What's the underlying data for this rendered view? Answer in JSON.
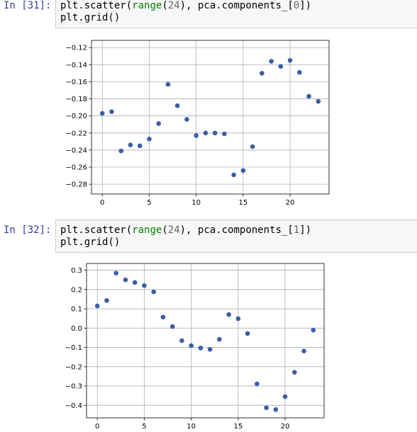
{
  "cells": [
    {
      "prompt": "In [31]:",
      "code": {
        "line1_pre": "plt.scatter(",
        "line1_fn": "range",
        "line1_open": "(",
        "line1_num": "24",
        "line1_mid": "), pca.components_[",
        "line1_idx": "0",
        "line1_end": "])",
        "line2": "plt.grid()"
      }
    },
    {
      "prompt": "In [32]:",
      "code": {
        "line1_pre": "plt.scatter(",
        "line1_fn": "range",
        "line1_open": "(",
        "line1_num": "24",
        "line1_mid": "), pca.components_[",
        "line1_idx": "1",
        "line1_end": "])",
        "line2": "plt.grid()"
      }
    }
  ],
  "colors": {
    "marker": "#3a5ea8",
    "grid": "#b0b0b0",
    "prompt": "#303F9F",
    "keyword": "#008000"
  },
  "chart_data": [
    {
      "type": "scatter",
      "title": "",
      "xlabel": "",
      "ylabel": "",
      "grid": true,
      "xlim": [
        -1.15,
        24.15
      ],
      "ylim": [
        -0.2915,
        -0.1115
      ],
      "xticks": [
        0,
        5,
        10,
        15,
        20
      ],
      "xtick_labels": [
        "0",
        "5",
        "10",
        "15",
        "20"
      ],
      "yticks": [
        -0.28,
        -0.26,
        -0.24,
        -0.22,
        -0.2,
        -0.18,
        -0.16,
        -0.14,
        -0.12
      ],
      "ytick_labels": [
        "−0.28",
        "−0.26",
        "−0.24",
        "−0.22",
        "−0.20",
        "−0.18",
        "−0.16",
        "−0.14",
        "−0.12"
      ],
      "x": [
        0,
        1,
        2,
        3,
        4,
        5,
        6,
        7,
        8,
        9,
        10,
        11,
        12,
        13,
        14,
        15,
        16,
        17,
        18,
        19,
        20,
        21,
        22,
        23
      ],
      "y": [
        -0.197,
        -0.195,
        -0.241,
        -0.234,
        -0.235,
        -0.227,
        -0.209,
        -0.163,
        -0.188,
        -0.204,
        -0.223,
        -0.22,
        -0.22,
        -0.221,
        -0.269,
        -0.264,
        -0.236,
        -0.15,
        -0.136,
        -0.142,
        -0.135,
        -0.149,
        -0.177,
        -0.183
      ]
    },
    {
      "type": "scatter",
      "title": "",
      "xlabel": "",
      "ylabel": "",
      "grid": true,
      "xlim": [
        -1.15,
        24.15
      ],
      "ylim": [
        -0.465,
        0.335
      ],
      "xticks": [
        0,
        5,
        10,
        15,
        20
      ],
      "xtick_labels": [
        "0",
        "5",
        "10",
        "15",
        "20"
      ],
      "yticks": [
        -0.4,
        -0.3,
        -0.2,
        -0.1,
        0.0,
        0.1,
        0.2,
        0.3
      ],
      "ytick_labels": [
        "−0.4",
        "−0.3",
        "−0.2",
        "−0.1",
        "0.0",
        "0.1",
        "0.2",
        "0.3"
      ],
      "x": [
        0,
        1,
        2,
        3,
        4,
        5,
        6,
        7,
        8,
        9,
        10,
        11,
        12,
        13,
        14,
        15,
        16,
        17,
        18,
        19,
        20,
        21,
        22,
        23
      ],
      "y": [
        0.115,
        0.143,
        0.285,
        0.25,
        0.236,
        0.22,
        0.188,
        0.057,
        0.008,
        -0.065,
        -0.091,
        -0.103,
        -0.11,
        -0.058,
        0.07,
        0.049,
        -0.028,
        -0.289,
        -0.413,
        -0.422,
        -0.355,
        -0.229,
        -0.119,
        -0.01
      ]
    }
  ]
}
